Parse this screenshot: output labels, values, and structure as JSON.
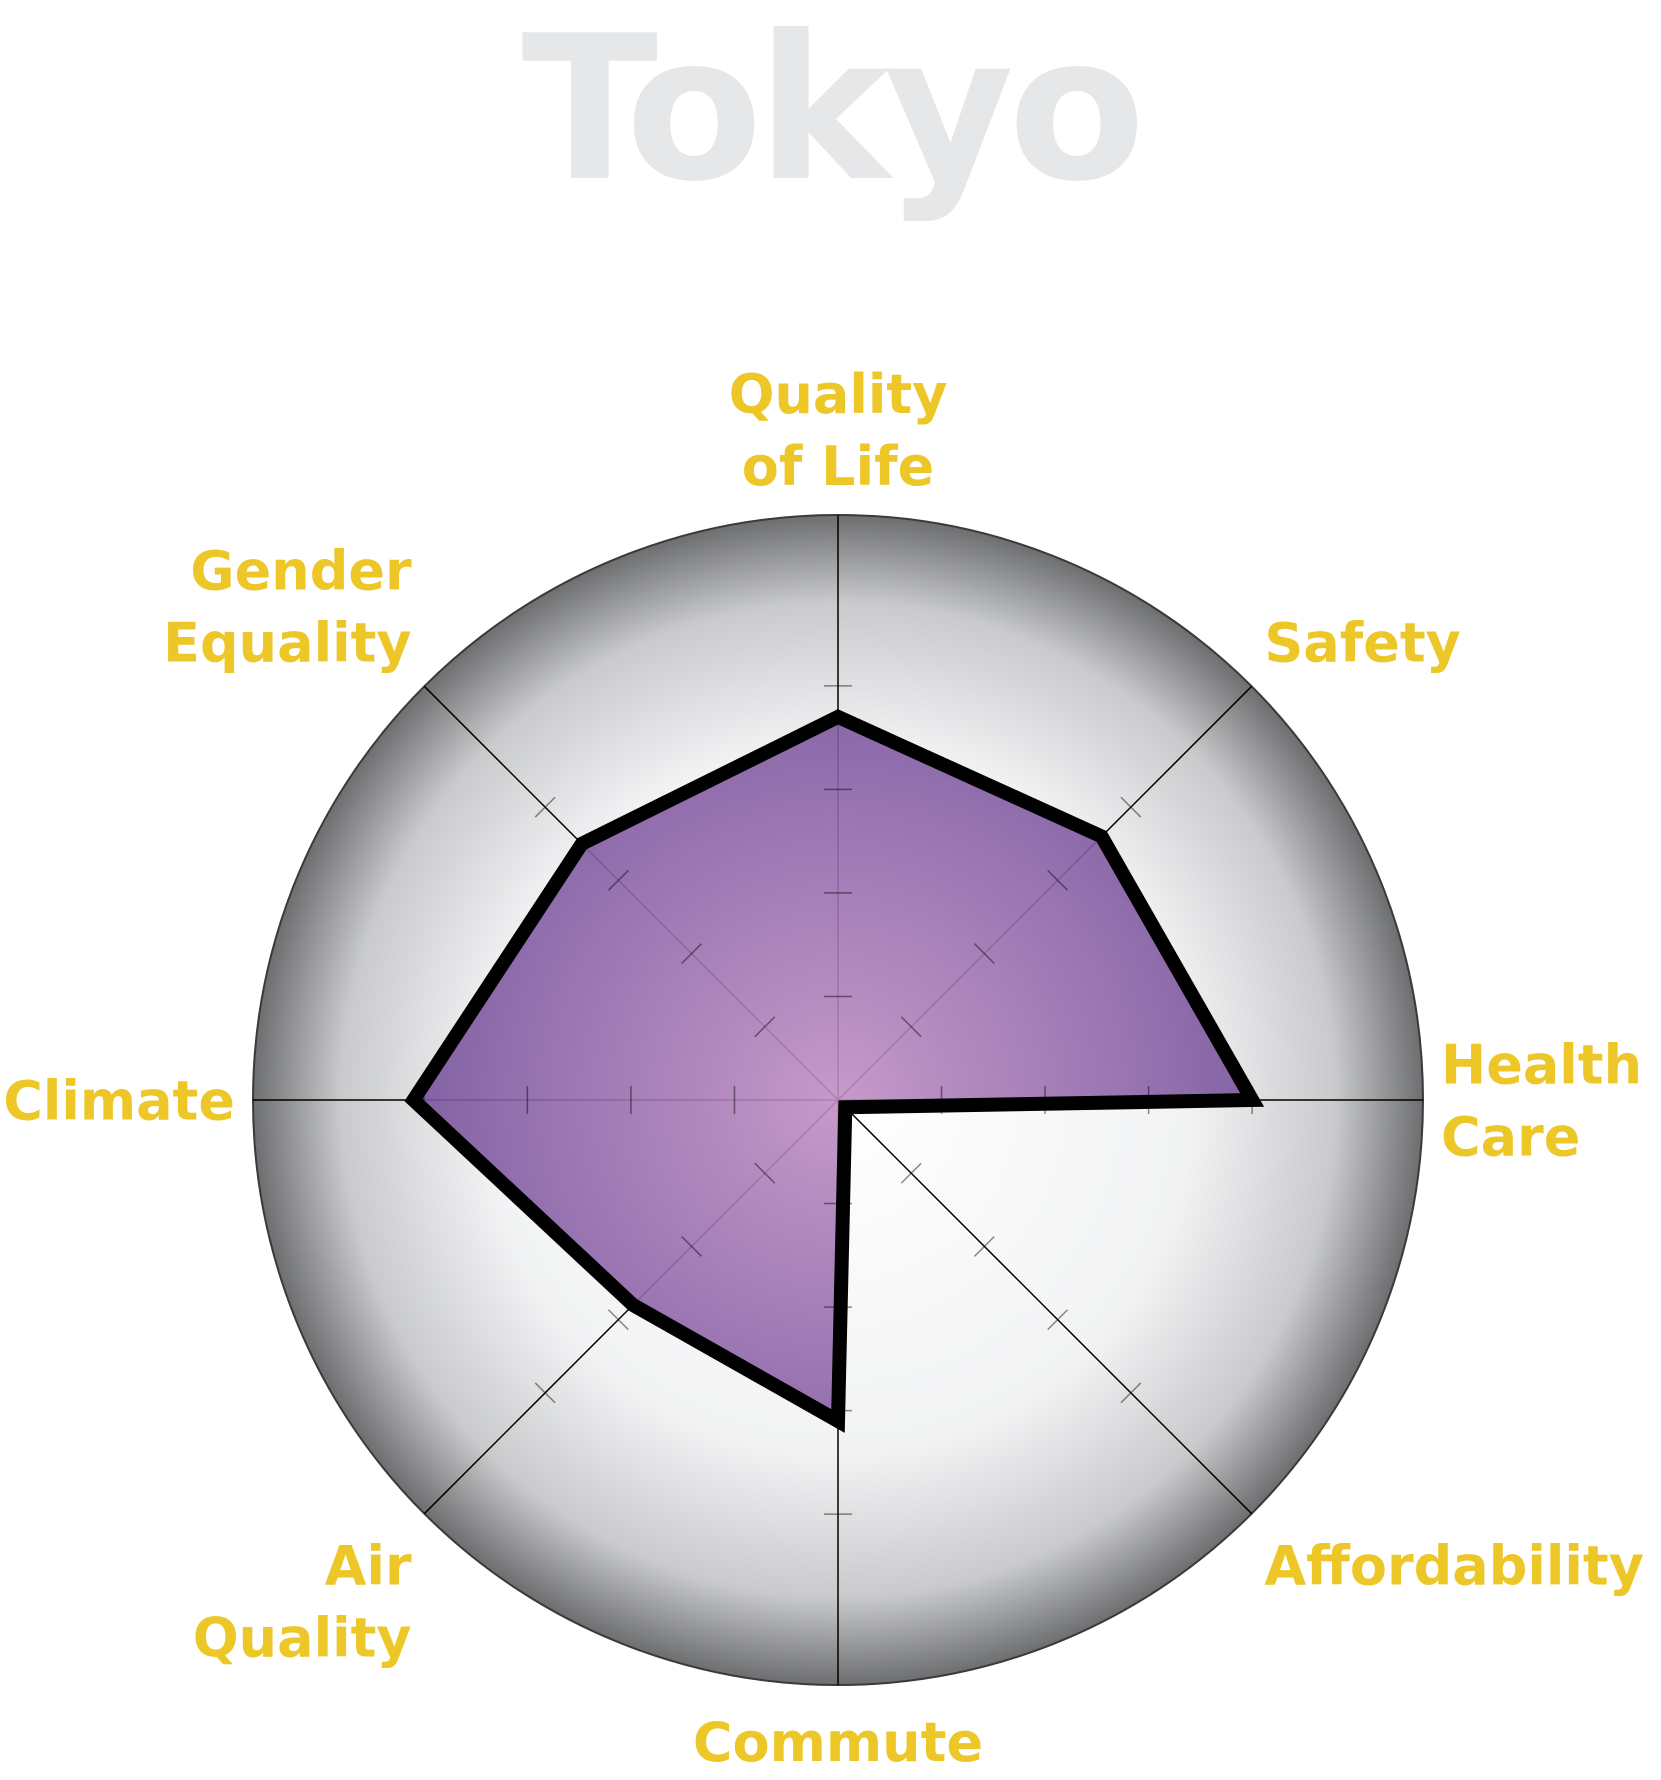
{
  "title": "Tokyo",
  "colors": {
    "title": "#e6e7e8",
    "label": "#edc628",
    "fill_center": "#c08fc4",
    "fill_edge": "#6e4c98",
    "outline": "#000000",
    "disc_center": "#ffffff",
    "disc_edge": "#6d6e70"
  },
  "chart_data": {
    "type": "radar",
    "title": "Tokyo",
    "axes": [
      "Quality of Life",
      "Safety",
      "Health Care",
      "Affordability",
      "Commute",
      "Air Quality",
      "Climate",
      "Gender Equality"
    ],
    "axis_label_lines": [
      [
        "Quality",
        "of Life"
      ],
      [
        "Safety"
      ],
      [
        "Health",
        "Care"
      ],
      [
        "Affordability"
      ],
      [
        "Commute"
      ],
      [
        "Air",
        "Quality"
      ],
      [
        "Climate"
      ],
      [
        "Gender",
        "Equality"
      ]
    ],
    "values": [
      3.7,
      3.6,
      4.0,
      0.1,
      3.1,
      2.8,
      4.1,
      3.5
    ],
    "r_range": [
      0,
      5
    ],
    "ticks": [
      1,
      2,
      3,
      4
    ],
    "grid": false,
    "legend": "none"
  }
}
